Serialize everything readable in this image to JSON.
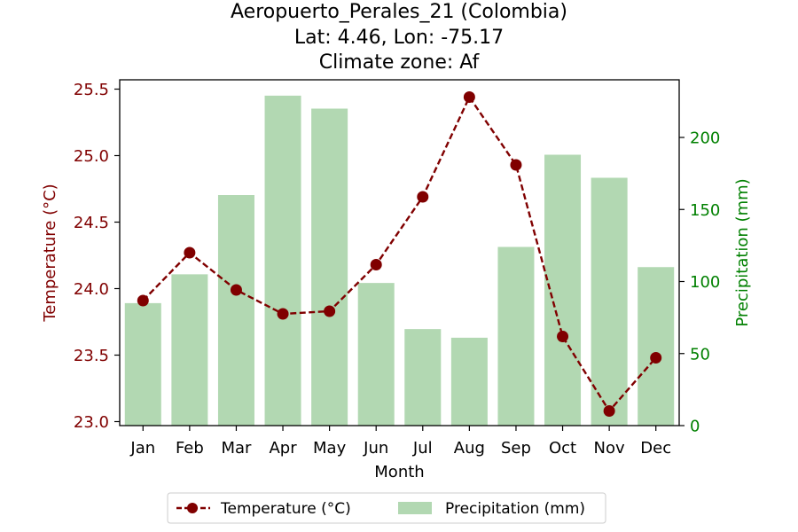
{
  "chart_data": {
    "type": "bar+line",
    "title_lines": [
      "Aeropuerto_Perales_21 (Colombia)",
      "Lat: 4.46, Lon: -75.17",
      "Climate zone: Af"
    ],
    "xlabel": "Month",
    "ylabel_left": "Temperature (°C)",
    "ylabel_right": "Precipitation (mm)",
    "categories": [
      "Jan",
      "Feb",
      "Mar",
      "Apr",
      "May",
      "Jun",
      "Jul",
      "Aug",
      "Sep",
      "Oct",
      "Nov",
      "Dec"
    ],
    "temperature": {
      "name": "Temperature (°C)",
      "values": [
        23.91,
        24.27,
        23.99,
        23.81,
        23.83,
        24.18,
        24.69,
        25.44,
        24.93,
        23.64,
        23.08,
        23.48
      ],
      "ylim": [
        22.97,
        25.57
      ],
      "ticks": [
        23.0,
        23.5,
        24.0,
        24.5,
        25.0,
        25.5
      ],
      "tick_labels": [
        "23.0",
        "23.5",
        "24.0",
        "24.5",
        "25.0",
        "25.5"
      ],
      "color": "#800000"
    },
    "precipitation": {
      "name": "Precipitation (mm)",
      "values": [
        85,
        105,
        160,
        229,
        220,
        99,
        67,
        61,
        124,
        188,
        172,
        110
      ],
      "ylim": [
        0,
        240
      ],
      "ticks": [
        0,
        50,
        100,
        150,
        200
      ],
      "tick_labels": [
        "0",
        "50",
        "100",
        "150",
        "200"
      ],
      "color": "#b2d8b2",
      "axis_color": "#008000"
    },
    "legend": {
      "placement": "bottom-center",
      "entries": [
        "Temperature (°C)",
        "Precipitation (mm)"
      ]
    },
    "grid": false
  }
}
